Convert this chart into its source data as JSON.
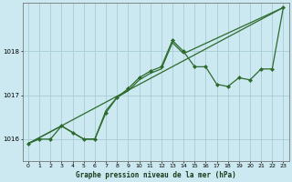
{
  "title": "Graphe pression niveau de la mer (hPa)",
  "bg_color": "#cce8f0",
  "line_color": "#2d6b2d",
  "grid_color": "#a8cdd8",
  "xlim": [
    -0.5,
    23.5
  ],
  "ylim": [
    1015.5,
    1019.1
  ],
  "yticks": [
    1016,
    1017,
    1018
  ],
  "xticks": [
    0,
    1,
    2,
    3,
    4,
    5,
    6,
    7,
    8,
    9,
    10,
    11,
    12,
    13,
    14,
    15,
    16,
    17,
    18,
    19,
    20,
    21,
    22,
    23
  ],
  "series_main": {
    "x": [
      0,
      1,
      2,
      3,
      4,
      5,
      6,
      7,
      8,
      9,
      10,
      11,
      12,
      13,
      14,
      15,
      16,
      17,
      18,
      19,
      20,
      21,
      22,
      23
    ],
    "y": [
      1015.9,
      1016.0,
      1016.0,
      1016.3,
      1016.15,
      1016.0,
      1016.0,
      1016.6,
      1016.95,
      1017.15,
      1017.4,
      1017.55,
      1017.65,
      1018.25,
      1018.0,
      1017.65,
      1017.65,
      1017.25,
      1017.2,
      1017.4,
      1017.35,
      1017.6,
      1017.6,
      1019.0
    ]
  },
  "series_trend": {
    "x": [
      0,
      3,
      4,
      5,
      6,
      7,
      8,
      9,
      10,
      11,
      12,
      13,
      14,
      23
    ],
    "y": [
      1015.9,
      1016.3,
      1016.15,
      1016.0,
      1016.0,
      1016.65,
      1016.95,
      1017.1,
      1017.35,
      1017.5,
      1017.6,
      1018.2,
      1017.95,
      1019.0
    ]
  },
  "series_linear": {
    "x": [
      0,
      23
    ],
    "y": [
      1015.9,
      1019.0
    ]
  }
}
